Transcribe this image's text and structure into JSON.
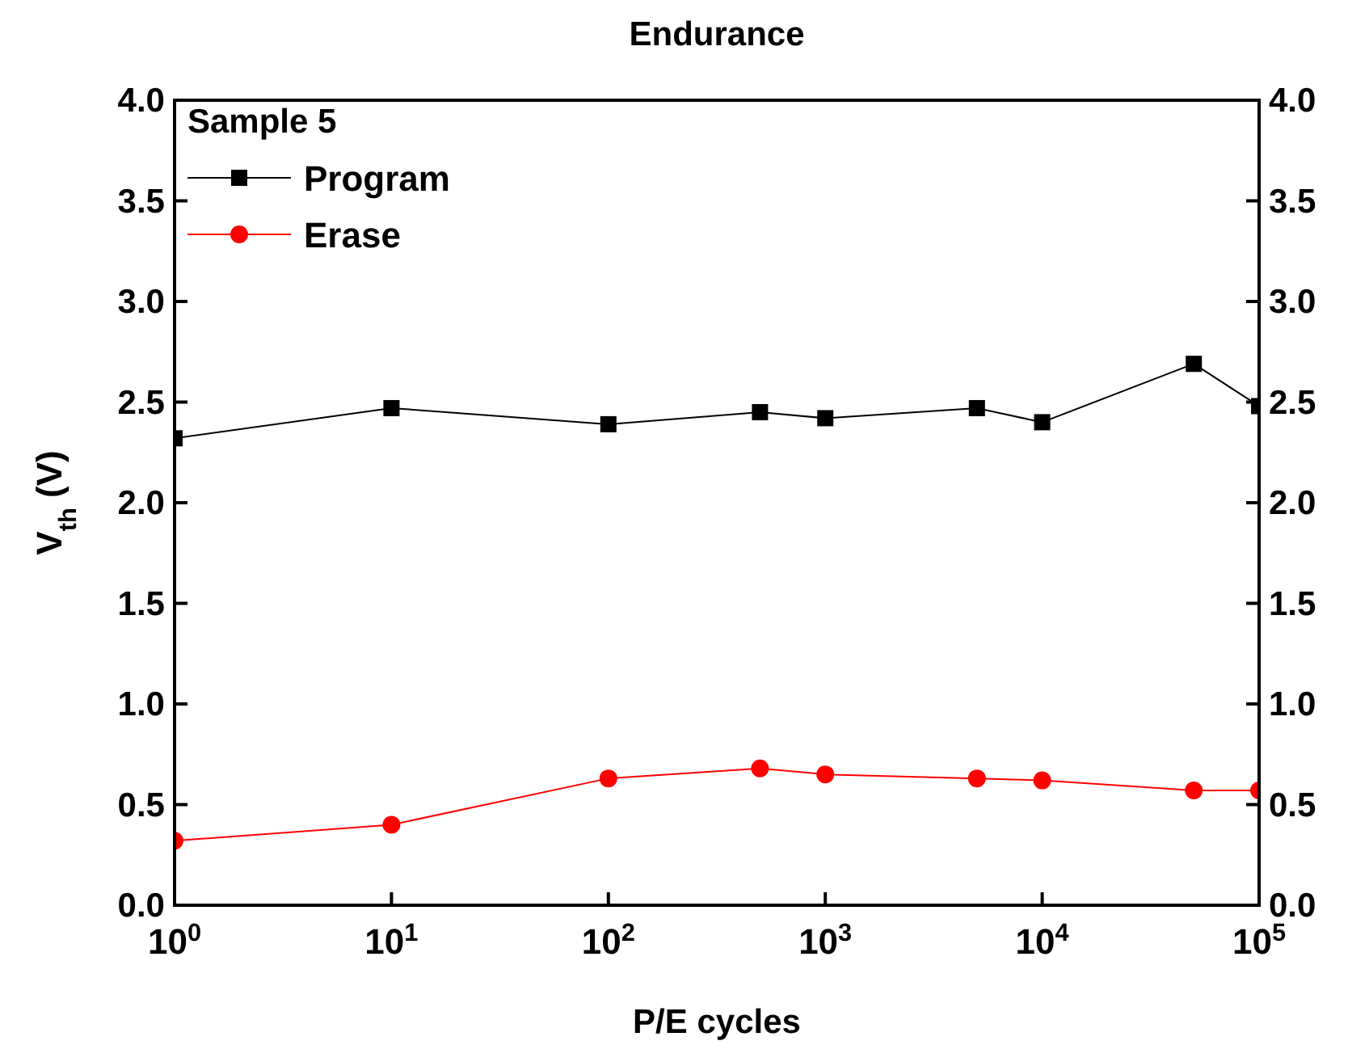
{
  "chart_data": {
    "type": "line",
    "title": "Endurance",
    "xlabel": "P/E cycles",
    "ylabel": "V$_{th}$ (V)",
    "legend_title": "Sample 5",
    "log": "x",
    "legend": "top left",
    "grid": false,
    "x": [
      1,
      10,
      100,
      500,
      1000,
      5000,
      10000,
      50000,
      100000
    ],
    "series": [
      {
        "name": "Program",
        "color": "#000000",
        "marker": "square",
        "values": [
          2.32,
          2.47,
          2.39,
          2.45,
          2.42,
          2.47,
          2.4,
          2.69,
          2.48
        ]
      },
      {
        "name": "Erase",
        "color": "#ff0000",
        "marker": "circle",
        "values": [
          0.32,
          0.4,
          0.63,
          0.68,
          0.65,
          0.63,
          0.62,
          0.57,
          0.57
        ]
      }
    ],
    "xlim": [
      1,
      100000
    ],
    "xticks": [
      {
        "value": 1,
        "label": "10$^{0}$"
      },
      {
        "value": 10,
        "label": "10$^{1}$"
      },
      {
        "value": 100,
        "label": "10$^{2}$"
      },
      {
        "value": 1000,
        "label": "10$^{3}$"
      },
      {
        "value": 10000,
        "label": "10$^{4}$"
      },
      {
        "value": 100000,
        "label": "10$^{5}$"
      }
    ],
    "ylim": [
      0,
      4
    ],
    "yticks": [
      {
        "value": 0,
        "label": "0.0"
      },
      {
        "value": 0.5,
        "label": "0.5"
      },
      {
        "value": 1,
        "label": "1.0"
      },
      {
        "value": 1.5,
        "label": "1.5"
      },
      {
        "value": 2,
        "label": "2.0"
      },
      {
        "value": 2.5,
        "label": "2.5"
      },
      {
        "value": 3,
        "label": "3.0"
      },
      {
        "value": 3.5,
        "label": "3.5"
      },
      {
        "value": 4,
        "label": "4.0"
      }
    ],
    "y2lim": [
      0,
      4
    ],
    "y2ticks": [
      {
        "value": 0,
        "label": "0.0"
      },
      {
        "value": 0.5,
        "label": "0.5"
      },
      {
        "value": 1,
        "label": "1.0"
      },
      {
        "value": 1.5,
        "label": "1.5"
      },
      {
        "value": 2,
        "label": "2.0"
      },
      {
        "value": 2.5,
        "label": "2.5"
      },
      {
        "value": 3,
        "label": "3.0"
      },
      {
        "value": 3.5,
        "label": "3.5"
      },
      {
        "value": 4,
        "label": "4.0"
      }
    ]
  }
}
